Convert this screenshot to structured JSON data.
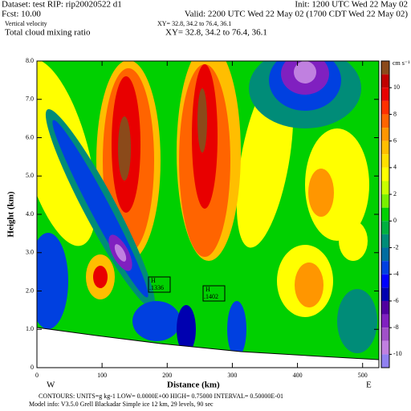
{
  "chart_data": {
    "type": "contour",
    "header": {
      "dataset": "Dataset: test  RIP: rip20020522 d1",
      "init": "Init: 1200 UTC Wed 22 May 02",
      "fcst": "Fcst:    10.00",
      "valid": "Valid: 2200 UTC Wed 22 May 02 (1700 CDT Wed 22 May 02)",
      "field1": "Vertical velocity",
      "xy1": "XY=  32.8, 34.2 to  76.4, 36.1",
      "field2": "Total cloud mixing ratio",
      "xy2": "XY=  32.8, 34.2 to  76.4, 36.1"
    },
    "xlabel": "Distance (km)",
    "ylabel": "Height (km)",
    "xlim": [
      0,
      525
    ],
    "ylim": [
      0,
      8
    ],
    "xticks": [
      0,
      100,
      200,
      300,
      400,
      500
    ],
    "yticks": [
      0,
      {
        "value": 1,
        "label": "1.0"
      },
      {
        "value": 2,
        "label": "2.0"
      },
      {
        "value": 3,
        "label": "3.0"
      },
      {
        "value": 4,
        "label": "4.0"
      },
      {
        "value": 5,
        "label": "5.0"
      },
      {
        "value": 6,
        "label": "6.0"
      },
      {
        "value": 7,
        "label": "7.0"
      },
      {
        "value": 8,
        "label": "8.0"
      }
    ],
    "endpoints": [
      "W",
      "E"
    ],
    "colorbar": {
      "unit": "cm s⁻¹",
      "ticks": [
        10,
        8,
        6,
        4,
        2,
        0,
        -2,
        -4,
        -6,
        -8,
        -10
      ],
      "colors": [
        "#8b4a1a",
        "#c00000",
        "#e80000",
        "#ff3000",
        "#ff6400",
        "#ff9600",
        "#ffbe00",
        "#ffe000",
        "#ffff00",
        "#c8ff00",
        "#78f000",
        "#00d000",
        "#00b040",
        "#008c78",
        "#006ca0",
        "#0040e0",
        "#0000ff",
        "#0000b0",
        "#5000a0",
        "#8020c0",
        "#a050c8",
        "#c080e0",
        "#9080f0"
      ]
    },
    "maxima": {
      "labels": [
        "H",
        "H"
      ],
      "values": [
        0.1336,
        0.1402
      ],
      "value_labels": [
        ".1336",
        ".1402"
      ]
    },
    "footer": {
      "contours": "CONTOURS:  UNITS=g kg-1   LOW= 0.0000E+00  HIGH= 0.75000     INTERVAL=  0.50000E-01",
      "model": "Model info: V3.5.0   Grell     Blackadar   Simple ice    12 km,  29 levels,   90 sec"
    }
  }
}
